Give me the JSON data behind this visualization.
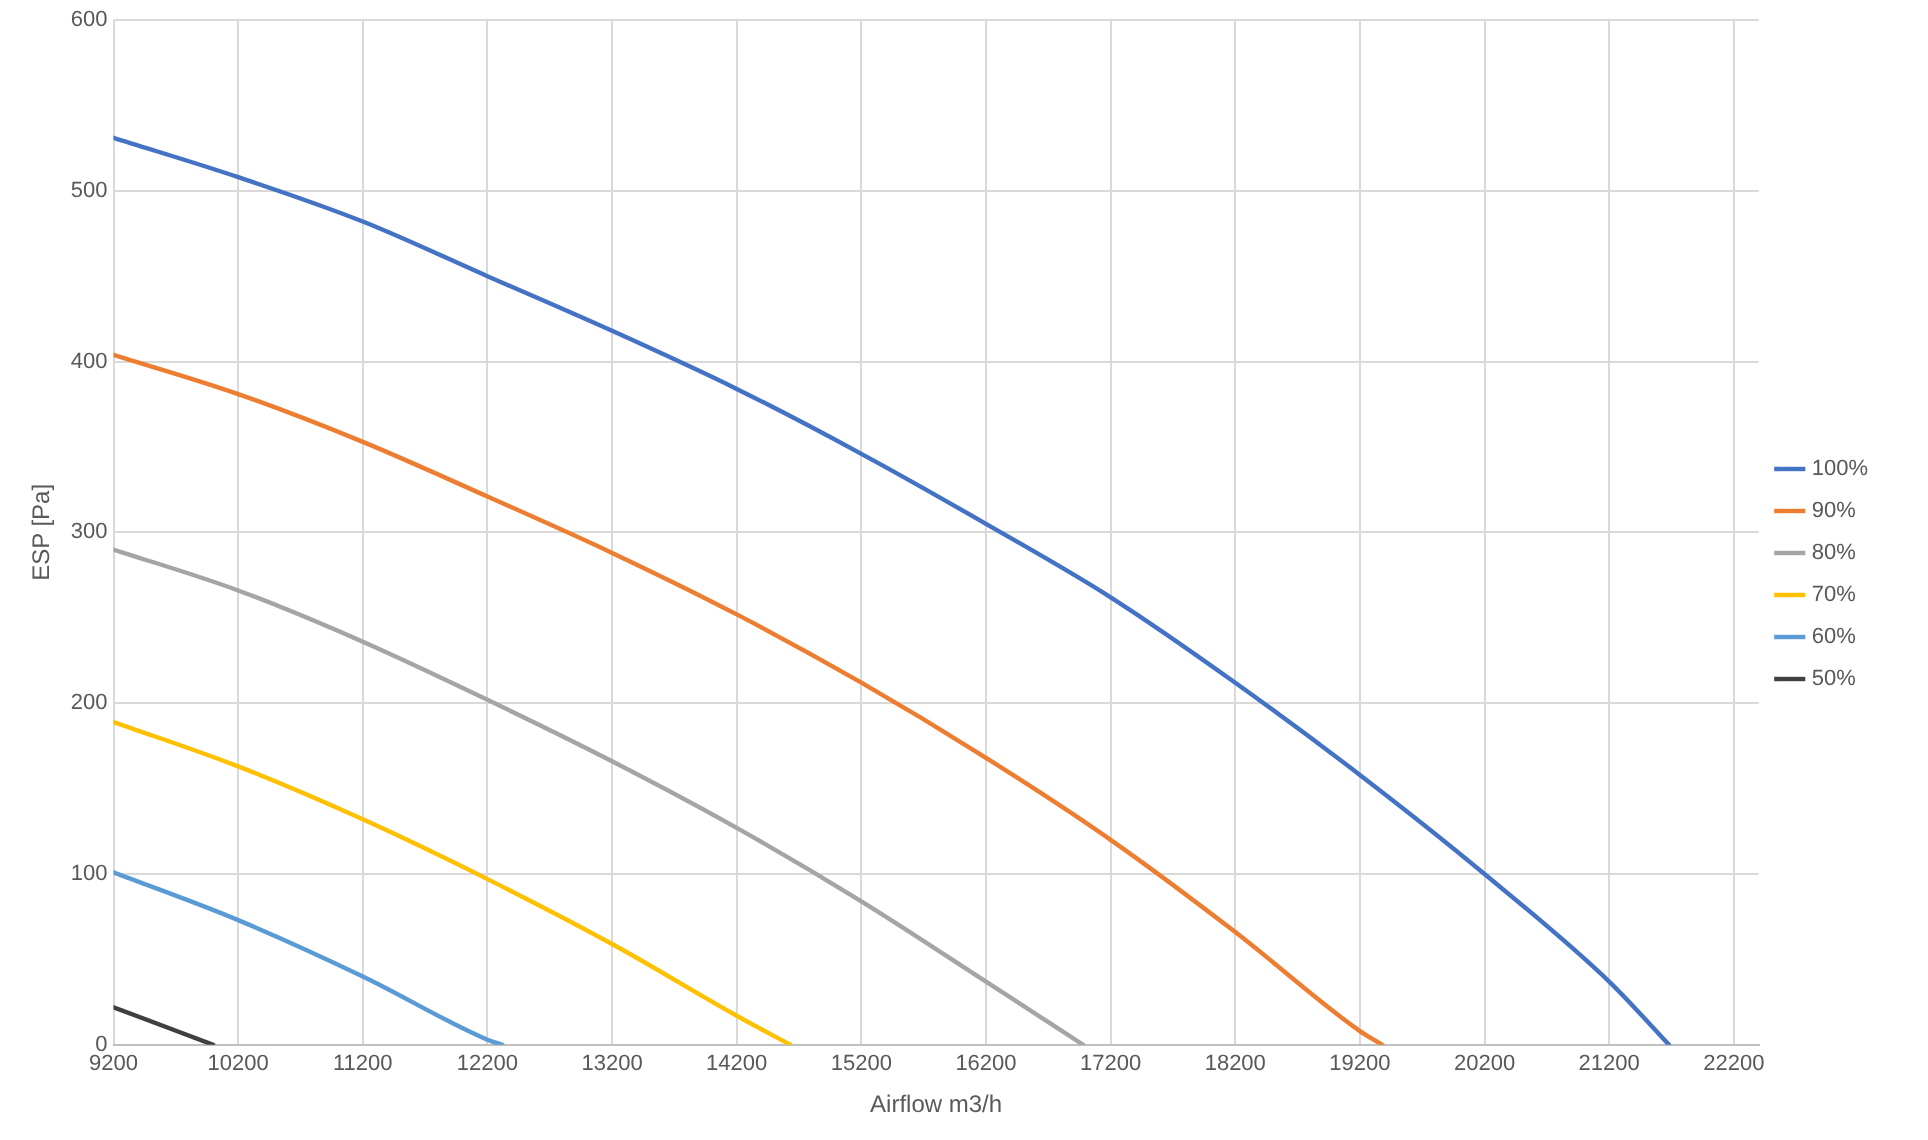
{
  "chart_data": {
    "type": "line",
    "xlabel": "Airflow m3/h",
    "ylabel": "ESP [Pa]",
    "xlim": [
      9200,
      22400
    ],
    "xticks": [
      9200,
      10200,
      11200,
      12200,
      13200,
      14200,
      15200,
      16200,
      17200,
      18200,
      19200,
      20200,
      21200,
      22200
    ],
    "ylim": [
      0,
      600
    ],
    "yticks": [
      0,
      100,
      200,
      300,
      400,
      500,
      600
    ],
    "grid": true,
    "legend": "right",
    "marker": "none",
    "line_style": "solid",
    "series": [
      {
        "name": "100%",
        "color": "#4472c4",
        "x": [
          9200,
          10200,
          11200,
          12200,
          13200,
          14200,
          15200,
          16200,
          17200,
          18200,
          19200,
          20200,
          21200,
          21680
        ],
        "values": [
          531,
          508,
          482,
          450,
          418,
          384,
          346,
          305,
          262,
          212,
          158,
          100,
          37,
          0
        ]
      },
      {
        "name": "90%",
        "color": "#ed7d31",
        "x": [
          9200,
          10200,
          11200,
          12200,
          13200,
          14200,
          15200,
          16200,
          17200,
          18200,
          19200,
          19380
        ],
        "values": [
          404,
          381,
          353,
          321,
          288,
          252,
          212,
          168,
          120,
          66,
          8,
          0
        ]
      },
      {
        "name": "80%",
        "color": "#a5a5a5",
        "x": [
          9200,
          10200,
          11200,
          12200,
          13200,
          14200,
          15200,
          16200,
          16980
        ],
        "values": [
          290,
          266,
          236,
          202,
          166,
          127,
          84,
          37,
          0
        ]
      },
      {
        "name": "70%",
        "color": "#ffc000",
        "x": [
          9200,
          10200,
          11200,
          12200,
          13200,
          14200,
          14630
        ],
        "values": [
          189,
          163,
          132,
          97,
          59,
          17,
          0
        ]
      },
      {
        "name": "60%",
        "color": "#5b9bd5",
        "x": [
          9200,
          10200,
          11200,
          12200,
          12320
        ],
        "values": [
          101,
          73,
          40,
          3,
          0
        ]
      },
      {
        "name": "50%",
        "color": "#404040",
        "x": [
          9200,
          10000
        ],
        "values": [
          22,
          0
        ]
      }
    ]
  }
}
